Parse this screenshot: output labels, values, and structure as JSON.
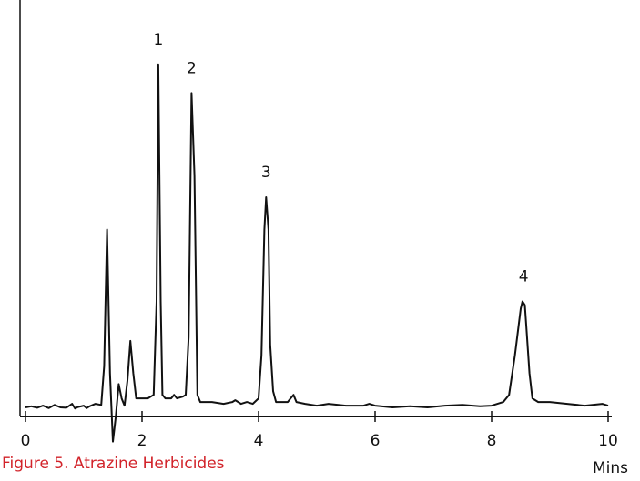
{
  "caption": "Figure 5. Atrazine Herbicides",
  "colors": {
    "caption": "#d2232a",
    "trace": "#111111",
    "axis": "#111111"
  },
  "chart_data": {
    "type": "line",
    "title": "",
    "xlabel": "Mins",
    "ylabel": "",
    "xlim": [
      0,
      10
    ],
    "ylim": [
      -10,
      100
    ],
    "grid": false,
    "x_ticks": [
      {
        "value": 0,
        "label": "0"
      },
      {
        "value": 2,
        "label": "2"
      },
      {
        "value": 4,
        "label": "4"
      },
      {
        "value": 6,
        "label": "6"
      },
      {
        "value": 8,
        "label": "8"
      },
      {
        "value": 10,
        "label": "10"
      }
    ],
    "peaks": [
      {
        "label": "1",
        "time": 2.28,
        "height": 96
      },
      {
        "label": "2",
        "time": 2.85,
        "height": 88
      },
      {
        "label": "3",
        "time": 4.13,
        "height": 59
      },
      {
        "label": "4",
        "time": 8.55,
        "height": 30
      }
    ],
    "series": [
      {
        "x": [
          0,
          0.1,
          0.2,
          0.3,
          0.4,
          0.5,
          0.6,
          0.7,
          0.8,
          0.85,
          0.9,
          1.0,
          1.05,
          1.1,
          1.2,
          1.3,
          1.35,
          1.4,
          1.45,
          1.5,
          1.55,
          1.6,
          1.65,
          1.7,
          1.75,
          1.8,
          1.85,
          1.9,
          2.0,
          2.1,
          2.2,
          2.25,
          2.28,
          2.32,
          2.35,
          2.4,
          2.5,
          2.55,
          2.6,
          2.7,
          2.75,
          2.8,
          2.85,
          2.9,
          2.95,
          3.0,
          3.2,
          3.4,
          3.55,
          3.6,
          3.7,
          3.8,
          3.9,
          4.0,
          4.05,
          4.1,
          4.13,
          4.17,
          4.2,
          4.25,
          4.3,
          4.4,
          4.5,
          4.55,
          4.6,
          4.65,
          4.8,
          5.0,
          5.2,
          5.5,
          5.8,
          5.9,
          6.0,
          6.3,
          6.6,
          6.9,
          7.2,
          7.5,
          7.8,
          8.0,
          8.2,
          8.3,
          8.4,
          8.5,
          8.53,
          8.57,
          8.6,
          8.65,
          8.7,
          8.8,
          9.0,
          9.3,
          9.6,
          9.9,
          10
        ],
        "y": [
          0.5,
          0.8,
          0.4,
          1.0,
          0.3,
          1.2,
          0.5,
          0.4,
          1.5,
          0.2,
          0.6,
          1.0,
          0.3,
          0.8,
          1.5,
          1.2,
          12,
          50,
          10,
          -9,
          -2,
          7,
          3,
          1,
          8,
          19,
          10,
          3,
          3,
          3,
          4,
          30,
          96,
          30,
          4,
          3,
          3,
          4,
          3,
          3.5,
          4,
          20,
          88,
          65,
          4,
          2,
          2,
          1.5,
          2,
          2.5,
          1.5,
          2,
          1.5,
          3,
          15,
          50,
          59,
          50,
          18,
          5,
          2,
          2,
          2,
          3,
          4,
          2,
          1.5,
          1,
          1.5,
          1,
          1,
          1.5,
          1,
          0.5,
          0.8,
          0.5,
          1,
          1.2,
          0.8,
          1,
          2,
          4,
          15,
          28,
          30,
          29,
          22,
          10,
          3,
          2,
          2,
          1.5,
          1,
          1.5,
          1
        ]
      }
    ]
  }
}
